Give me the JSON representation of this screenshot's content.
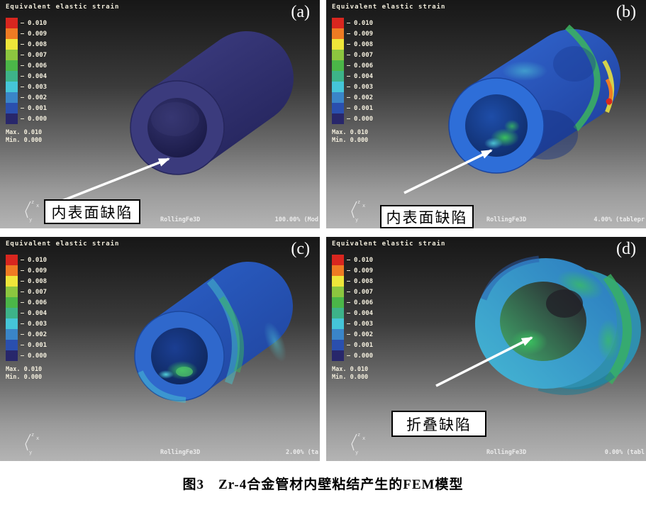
{
  "figure": {
    "caption": "图3　Zr-4合金管材内壁粘结产生的FEM模型"
  },
  "legend": {
    "title": "Equivalent elastic strain",
    "values": [
      "0.010",
      "0.009",
      "0.008",
      "0.007",
      "0.006",
      "0.004",
      "0.003",
      "0.002",
      "0.001",
      "0.000"
    ],
    "colors": [
      "#d8261f",
      "#ee7b23",
      "#eee63a",
      "#8cc63f",
      "#4bb648",
      "#3db389",
      "#45c5d8",
      "#3a85c8",
      "#2a4fae",
      "#28276b"
    ],
    "max_label": "Max.",
    "max_value": "0.010",
    "min_label": "Min.",
    "min_value": "0.000"
  },
  "panels": [
    {
      "letter": "(a)",
      "app_label": "RollingFe3D",
      "status": "100.00% (Mod",
      "annotation": "内表面缺陷"
    },
    {
      "letter": "(b)",
      "app_label": "RollingFe3D",
      "status": "4.00% (tablepr",
      "annotation": "内表面缺陷"
    },
    {
      "letter": "(c)",
      "app_label": "RollingFe3D",
      "status": "2.00% (ta",
      "annotation": ""
    },
    {
      "letter": "(d)",
      "app_label": "RollingFe3D",
      "status": "0.00% (tabl",
      "annotation": "折叠缺陷"
    }
  ],
  "axis_triad": {
    "z": "z",
    "x": "x",
    "y": "y"
  }
}
